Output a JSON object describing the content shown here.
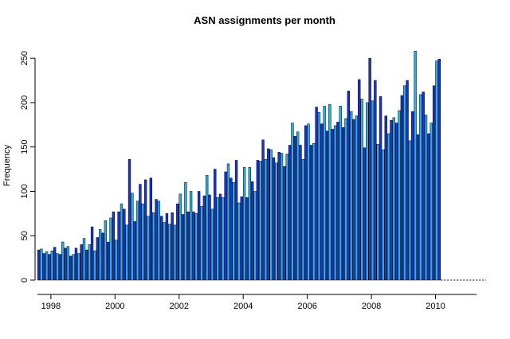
{
  "chart_data": {
    "type": "bar",
    "title": "ASN assignments per month",
    "xlabel": "",
    "ylabel": "Frequency",
    "ylim": [
      0,
      260
    ],
    "xlim": [
      1997.58,
      2011.28
    ],
    "y_ticks": [
      0,
      50,
      100,
      150,
      200,
      250
    ],
    "x_ticks": [
      1998,
      2000,
      2002,
      2004,
      2006,
      2008,
      2010
    ],
    "grid": false,
    "legend": "none",
    "start_year": 1997.583,
    "months_per_year": 12,
    "colors": {
      "primary": "#1a33d6",
      "alternate": "#29b0e0",
      "outline": "#000000"
    },
    "values": [
      34,
      35,
      30,
      32,
      29,
      33,
      37,
      30,
      29,
      43,
      36,
      38,
      27,
      29,
      36,
      30,
      40,
      47,
      34,
      40,
      60,
      33,
      48,
      57,
      53,
      67,
      43,
      70,
      77,
      45,
      77,
      86,
      80,
      62,
      136,
      98,
      66,
      89,
      108,
      86,
      113,
      72,
      115,
      76,
      91,
      89,
      72,
      65,
      75,
      63,
      76,
      62,
      86,
      97,
      74,
      110,
      77,
      100,
      77,
      75,
      100,
      83,
      95,
      118,
      96,
      80,
      125,
      93,
      97,
      93,
      122,
      131,
      115,
      110,
      135,
      87,
      94,
      127,
      93,
      127,
      111,
      100,
      135,
      134,
      158,
      136,
      148,
      147,
      138,
      132,
      144,
      143,
      128,
      142,
      152,
      177,
      162,
      167,
      152,
      136,
      174,
      176,
      152,
      154,
      195,
      189,
      176,
      196,
      168,
      198,
      170,
      174,
      178,
      196,
      172,
      182,
      213,
      190,
      181,
      185,
      226,
      204,
      149,
      200,
      250,
      202,
      225,
      153,
      207,
      147,
      185,
      165,
      180,
      183,
      177,
      191,
      208,
      219,
      225,
      157,
      190,
      258,
      164,
      209,
      212,
      186,
      165,
      177,
      219,
      247,
      249
    ]
  }
}
